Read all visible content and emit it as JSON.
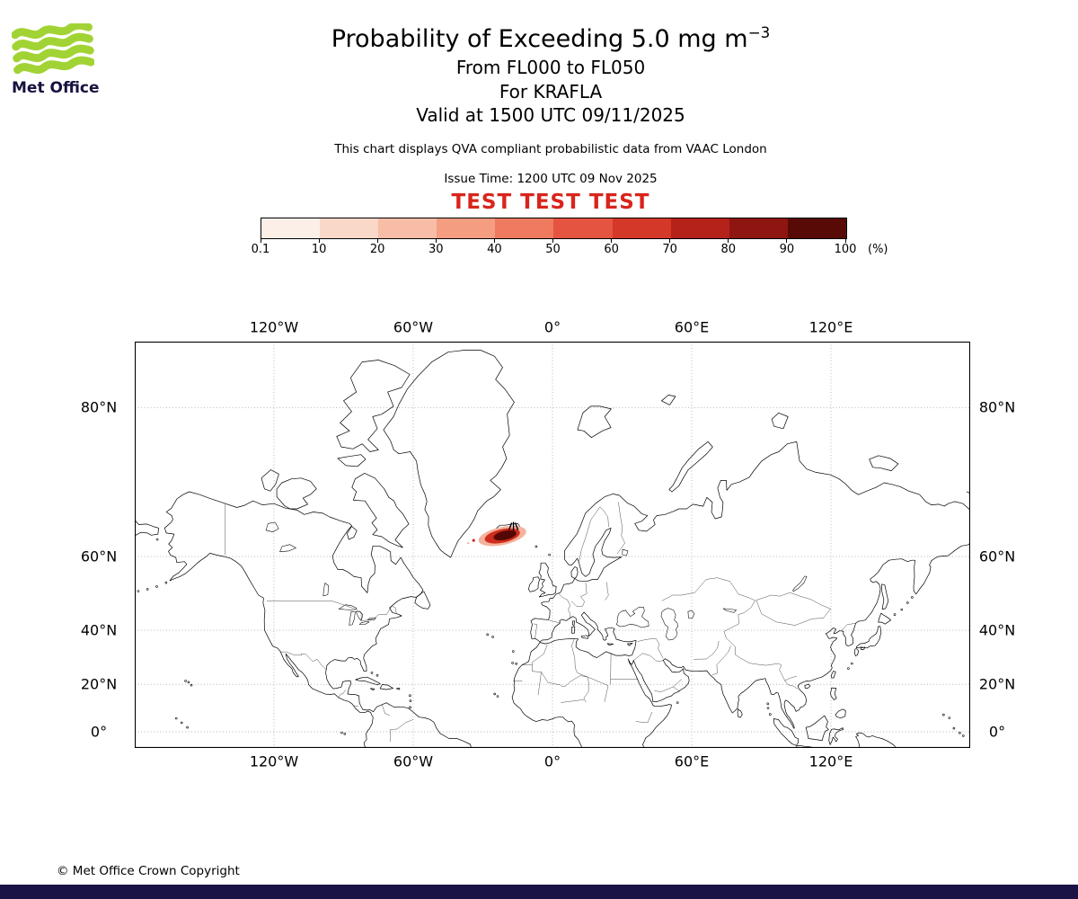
{
  "logo": {
    "text": "Met Office"
  },
  "header": {
    "title": "Probability of Exceeding 5.0 mg m",
    "title_sup": "−3",
    "subtitle1": "From FL000 to FL050",
    "subtitle2": "For KRAFLA",
    "subtitle3": "Valid at 1500 UTC 09/11/2025",
    "description": "This chart displays QVA compliant probabilistic data from VAAC London",
    "issue_time": "Issue Time: 1200 UTC 09 Nov 2025",
    "test_banner": "TEST TEST TEST"
  },
  "colorbar": {
    "tick_labels": [
      "0.1",
      "10",
      "20",
      "30",
      "40",
      "50",
      "60",
      "70",
      "80",
      "90",
      "100"
    ],
    "unit": "(%)",
    "colors": [
      "#fcefe8",
      "#fad8c8",
      "#f8bda6",
      "#f59d81",
      "#ef7a5f",
      "#e55440",
      "#d43828",
      "#b5221a",
      "#8f1511",
      "#570a06"
    ]
  },
  "map": {
    "lon_labels": [
      "120°W",
      "60°W",
      "0°",
      "60°E",
      "120°E"
    ],
    "lat_labels": [
      "80°N",
      "60°N",
      "40°N",
      "20°N",
      "0°"
    ],
    "marker_icon": "volcano-eruption-icon"
  },
  "plume": {
    "outer_color": "#f3b39e",
    "mid_color": "#cf2d1c",
    "core_color": "#550705"
  },
  "colors": {
    "test_red": "#d8251c",
    "brand_bar": "#1a1446",
    "logo_green": "#a2d335",
    "logo_text": "#16123f"
  },
  "footer": {
    "copyright": "© Met Office Crown Copyright"
  }
}
